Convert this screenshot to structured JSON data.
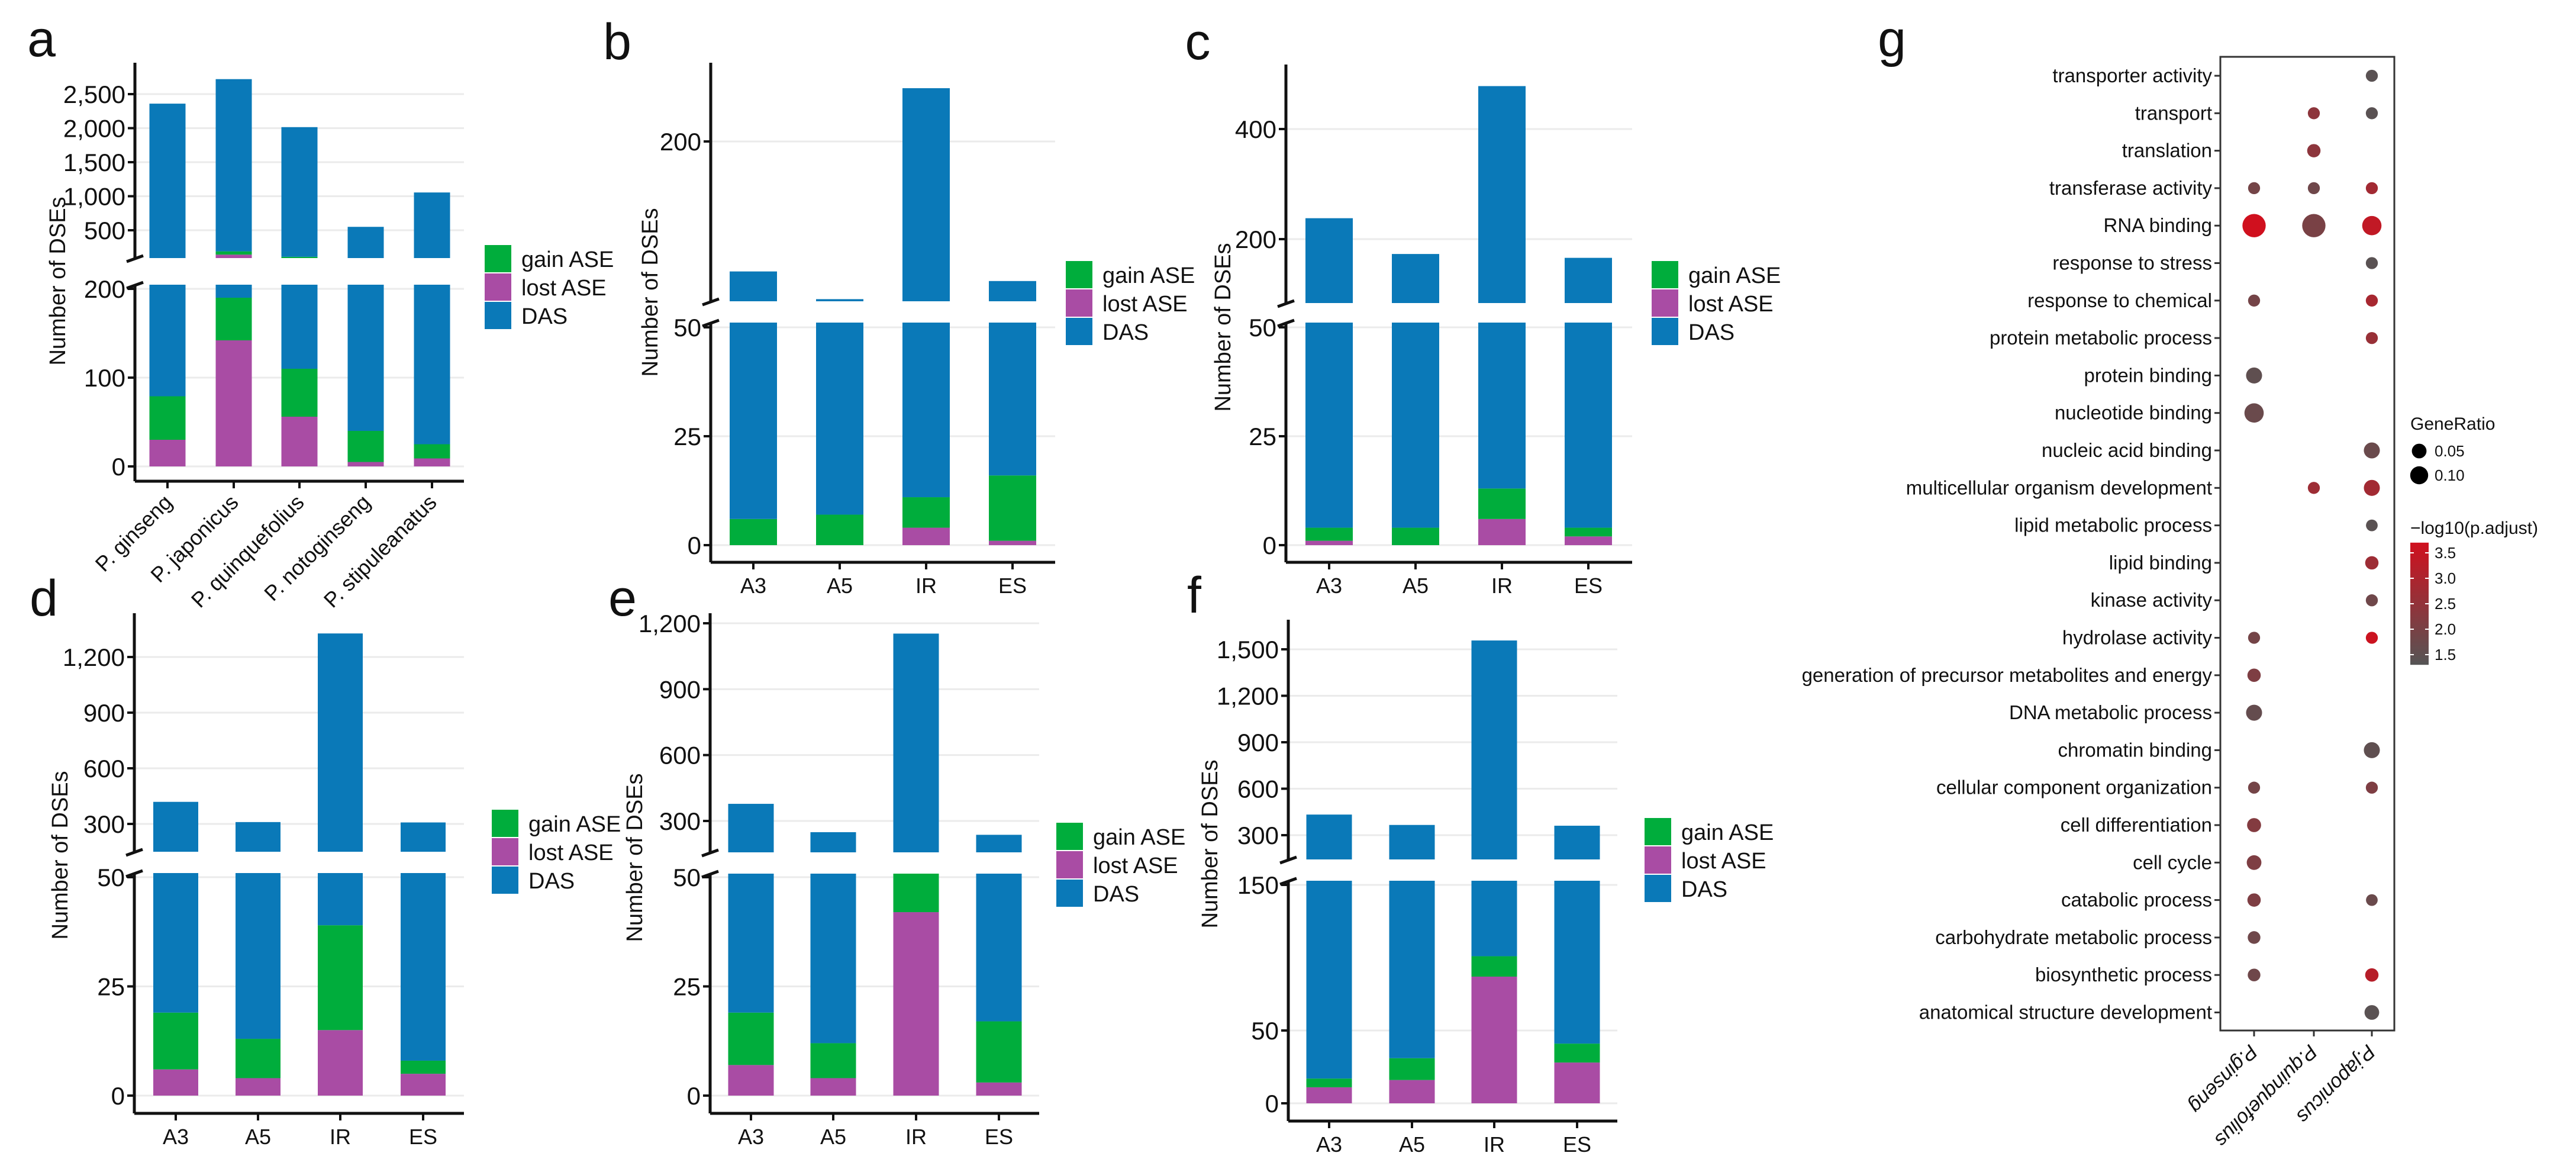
{
  "chart_data": [
    {
      "panel": "a",
      "type": "bar",
      "stacked": true,
      "broken_axis": true,
      "grid": true,
      "legend": "right",
      "ylabel": "Number of DSEs",
      "categories": [
        "P. ginseng",
        "P. japonicus",
        "P. quinquefolius",
        "P. notoginseng",
        "P. stipuleanatus"
      ],
      "series": [
        {
          "name": "lost ASE",
          "color": "#a94ca4",
          "values": [
            30,
            142,
            56,
            5,
            9
          ]
        },
        {
          "name": "gain ASE",
          "color": "#00ad3c",
          "values": [
            49,
            48,
            54,
            35,
            16
          ]
        },
        {
          "name": "DAS",
          "color": "#0a79b8",
          "values": [
            2281,
            2530,
            1905,
            510,
            1030
          ]
        }
      ],
      "legend_order": [
        "gain ASE",
        "lost ASE",
        "DAS"
      ],
      "y_ticks_lower": [
        0,
        100,
        200
      ],
      "y_tick_labels_lower": [
        "0",
        "100",
        "200"
      ],
      "y_ticks_upper": [
        500,
        1000,
        1500,
        2000,
        2500
      ],
      "y_tick_labels_upper": [
        "500",
        "1,000",
        "1,500",
        "2,000",
        "2,500"
      ]
    },
    {
      "panel": "b",
      "type": "bar",
      "stacked": true,
      "broken_axis": true,
      "grid": true,
      "legend": "right",
      "ylabel": "Number of DSEs",
      "categories": [
        "A3",
        "A5",
        "IR",
        "ES"
      ],
      "series": [
        {
          "name": "lost ASE",
          "color": "#a94ca4",
          "values": [
            0,
            0,
            4,
            1
          ]
        },
        {
          "name": "gain ASE",
          "color": "#00ad3c",
          "values": [
            6,
            7,
            7,
            15
          ]
        },
        {
          "name": "DAS",
          "color": "#0a79b8",
          "values": [
            72,
            45,
            239,
            53
          ]
        }
      ],
      "legend_order": [
        "gain ASE",
        "lost ASE",
        "DAS"
      ],
      "y_ticks_lower": [
        0,
        25,
        50
      ],
      "y_tick_labels_lower": [
        "0",
        "25",
        "50"
      ],
      "y_ticks_upper": [
        200
      ],
      "y_tick_labels_upper": [
        "200"
      ]
    },
    {
      "panel": "c",
      "type": "bar",
      "stacked": true,
      "broken_axis": true,
      "grid": true,
      "legend": "right",
      "ylabel": "Number of DSEs",
      "categories": [
        "A3",
        "A5",
        "IR",
        "ES"
      ],
      "series": [
        {
          "name": "lost ASE",
          "color": "#a94ca4",
          "values": [
            1,
            0,
            6,
            2
          ]
        },
        {
          "name": "gain ASE",
          "color": "#00ad3c",
          "values": [
            3,
            4,
            7,
            2
          ]
        },
        {
          "name": "DAS",
          "color": "#0a79b8",
          "values": [
            234,
            169,
            465,
            162
          ]
        }
      ],
      "legend_order": [
        "gain ASE",
        "lost ASE",
        "DAS"
      ],
      "y_ticks_lower": [
        0,
        25,
        50
      ],
      "y_tick_labels_lower": [
        "0",
        "25",
        "50"
      ],
      "y_ticks_upper": [
        200,
        400
      ],
      "y_tick_labels_upper": [
        "200",
        "400"
      ]
    },
    {
      "panel": "d",
      "type": "bar",
      "stacked": true,
      "broken_axis": true,
      "grid": true,
      "legend": "right",
      "ylabel": "Number of DSEs",
      "categories": [
        "A3",
        "A5",
        "IR",
        "ES"
      ],
      "series": [
        {
          "name": "lost ASE",
          "color": "#a94ca4",
          "values": [
            6,
            4,
            15,
            5
          ]
        },
        {
          "name": "gain ASE",
          "color": "#00ad3c",
          "values": [
            13,
            9,
            24,
            3
          ]
        },
        {
          "name": "DAS",
          "color": "#0a79b8",
          "values": [
            400,
            297,
            1288,
            300
          ]
        }
      ],
      "legend_order": [
        "gain ASE",
        "lost ASE",
        "DAS"
      ],
      "y_ticks_lower": [
        0,
        25,
        50
      ],
      "y_tick_labels_lower": [
        "0",
        "25",
        "50"
      ],
      "y_ticks_upper": [
        300,
        600,
        900,
        1200
      ],
      "y_tick_labels_upper": [
        "300",
        "600",
        "900",
        "1,200"
      ]
    },
    {
      "panel": "e",
      "type": "bar",
      "stacked": true,
      "broken_axis": true,
      "grid": true,
      "legend": "right",
      "ylabel": "Number of DSEs",
      "categories": [
        "A3",
        "A5",
        "IR",
        "ES"
      ],
      "series": [
        {
          "name": "lost ASE",
          "color": "#a94ca4",
          "values": [
            7,
            4,
            42,
            3
          ]
        },
        {
          "name": "gain ASE",
          "color": "#00ad3c",
          "values": [
            12,
            8,
            10,
            14
          ]
        },
        {
          "name": "DAS",
          "color": "#0a79b8",
          "values": [
            359,
            237,
            1101,
            220
          ]
        }
      ],
      "legend_order": [
        "gain ASE",
        "lost ASE",
        "DAS"
      ],
      "y_ticks_lower": [
        0,
        25,
        50
      ],
      "y_tick_labels_lower": [
        "0",
        "25",
        "50"
      ],
      "y_ticks_upper": [
        300,
        600,
        900,
        1200
      ],
      "y_tick_labels_upper": [
        "300",
        "600",
        "900",
        "1,200"
      ]
    },
    {
      "panel": "f",
      "type": "bar",
      "stacked": true,
      "broken_axis": true,
      "grid": true,
      "legend": "right",
      "ylabel": "Number of DSEs",
      "categories": [
        "A3",
        "A5",
        "IR",
        "ES"
      ],
      "series": [
        {
          "name": "lost ASE",
          "color": "#a94ca4",
          "values": [
            11,
            16,
            87,
            28
          ]
        },
        {
          "name": "gain ASE",
          "color": "#00ad3c",
          "values": [
            6,
            15,
            14,
            13
          ]
        },
        {
          "name": "DAS",
          "color": "#0a79b8",
          "values": [
            416,
            335,
            1456,
            320
          ]
        }
      ],
      "legend_order": [
        "gain ASE",
        "lost ASE",
        "DAS"
      ],
      "y_ticks_lower": [
        0,
        50,
        150
      ],
      "y_tick_labels_lower": [
        "0",
        "50",
        "150"
      ],
      "y_ticks_upper": [
        300,
        600,
        900,
        1200,
        1500
      ],
      "y_tick_labels_upper": [
        "300",
        "600",
        "900",
        "1,200",
        "1,500"
      ]
    },
    {
      "panel": "g",
      "type": "scatter",
      "subtype": "dot plot",
      "grid": false,
      "legend": "right",
      "x_categories": [
        "P.ginseng",
        "P.quinquefolius",
        "P.japonicus"
      ],
      "rows": [
        {
          "term": "transporter activity",
          "values": [
            null,
            null,
            [
              0.01,
              1.4
            ]
          ]
        },
        {
          "term": "transport",
          "values": [
            null,
            [
              0.01,
              2.4
            ],
            [
              0.01,
              1.4
            ]
          ]
        },
        {
          "term": "translation",
          "values": [
            null,
            [
              0.03,
              2.4
            ],
            null
          ]
        },
        {
          "term": "transferase activity",
          "values": [
            [
              0.01,
              1.9
            ],
            [
              0.01,
              1.8
            ],
            [
              0.01,
              2.8
            ]
          ]
        },
        {
          "term": "RNA binding",
          "values": [
            [
              0.18,
              3.7
            ],
            [
              0.18,
              2.0
            ],
            [
              0.12,
              3.4
            ]
          ]
        },
        {
          "term": "response to stress",
          "values": [
            null,
            null,
            [
              0.01,
              1.4
            ]
          ]
        },
        {
          "term": "response to chemical",
          "values": [
            [
              0.01,
              1.9
            ],
            null,
            [
              0.01,
              2.9
            ]
          ]
        },
        {
          "term": "protein metabolic process",
          "values": [
            null,
            null,
            [
              0.01,
              2.6
            ]
          ]
        },
        {
          "term": "protein binding",
          "values": [
            [
              0.07,
              1.5
            ],
            null,
            null
          ]
        },
        {
          "term": "nucleotide binding",
          "values": [
            [
              0.12,
              1.7
            ],
            null,
            null
          ]
        },
        {
          "term": "nucleic acid binding",
          "values": [
            null,
            null,
            [
              0.07,
              1.7
            ]
          ]
        },
        {
          "term": "multicellular organism development",
          "values": [
            null,
            [
              0.01,
              2.7
            ],
            [
              0.07,
              2.8
            ]
          ]
        },
        {
          "term": "lipid metabolic process",
          "values": [
            null,
            null,
            [
              0.005,
              1.4
            ]
          ]
        },
        {
          "term": "lipid binding",
          "values": [
            null,
            null,
            [
              0.03,
              2.7
            ]
          ]
        },
        {
          "term": "kinase activity",
          "values": [
            null,
            null,
            [
              0.01,
              1.8
            ]
          ]
        },
        {
          "term": "hydrolase activity",
          "values": [
            [
              0.01,
              1.9
            ],
            null,
            [
              0.01,
              3.6
            ]
          ]
        },
        {
          "term": "generation of precursor metabolites and energy",
          "values": [
            [
              0.03,
              2.1
            ],
            null,
            null
          ]
        },
        {
          "term": "DNA metabolic process",
          "values": [
            [
              0.07,
              1.6
            ],
            null,
            null
          ]
        },
        {
          "term": "chromatin binding",
          "values": [
            null,
            null,
            [
              0.07,
              1.5
            ]
          ]
        },
        {
          "term": "cellular component organization",
          "values": [
            [
              0.01,
              1.9
            ],
            null,
            [
              0.01,
              2.1
            ]
          ]
        },
        {
          "term": "cell differentiation",
          "values": [
            [
              0.04,
              2.2
            ],
            null,
            null
          ]
        },
        {
          "term": "cell cycle",
          "values": [
            [
              0.05,
              2.1
            ],
            null,
            null
          ]
        },
        {
          "term": "catabolic process",
          "values": [
            [
              0.03,
              2.1
            ],
            null,
            [
              0.005,
              1.7
            ]
          ]
        },
        {
          "term": "carbohydrate metabolic process",
          "values": [
            [
              0.02,
              1.8
            ],
            null,
            null
          ]
        },
        {
          "term": "biosynthetic process",
          "values": [
            [
              0.02,
              1.8
            ],
            null,
            [
              0.03,
              3.2
            ]
          ]
        },
        {
          "term": "anatomical structure development",
          "values": [
            null,
            null,
            [
              0.05,
              1.4
            ]
          ]
        }
      ],
      "value_fields": [
        "GeneRatio",
        "-log10(p.adjust)"
      ],
      "size_legend": {
        "title": "GeneRatio",
        "breaks": [
          0.05,
          0.1
        ],
        "labels": [
          "0.05",
          "0.10"
        ]
      },
      "color_legend": {
        "title": "−log10(p.adjust)",
        "range": [
          1.3,
          3.7
        ],
        "breaks": [
          1.5,
          2.0,
          2.5,
          3.0,
          3.5
        ],
        "labels": [
          "1.5",
          "2.0",
          "2.5",
          "3.0",
          "3.5"
        ],
        "low_color": "#555555",
        "high_color": "#d0101e"
      }
    }
  ]
}
